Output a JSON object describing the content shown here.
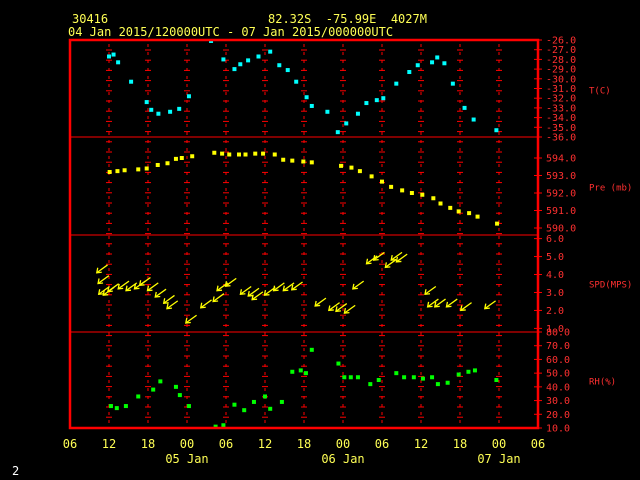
{
  "header": {
    "station": "30416",
    "location": "82.32S  -75.99E  4027M",
    "period": "04 Jan 2015/120000UTC - 07 Jan 2015/000000UTC"
  },
  "footer_id": "2",
  "chart_data": {
    "type": "multi-panel time series",
    "x_ticks": [
      "06",
      "12",
      "18",
      "00",
      "06",
      "12",
      "18",
      "00",
      "06",
      "12",
      "18",
      "00",
      "06"
    ],
    "x_day_labels": [
      {
        "label": "05 Jan",
        "at_hour": 24
      },
      {
        "label": "06 Jan",
        "at_hour": 48
      },
      {
        "label": "07 Jan",
        "at_hour": 72
      }
    ],
    "x_range_hours": [
      6,
      78
    ],
    "colors": {
      "frame": "#ff0000",
      "axis_text": "#ff3030",
      "header": "#ffff55",
      "temp": "#00ffff",
      "pres": "#ffff00",
      "wind": "#ffff00",
      "rh": "#00ff00"
    },
    "panels": [
      {
        "name": "temp",
        "label": "T(C)",
        "ylim": [
          -36,
          -26
        ],
        "ticks": [
          "-26.0",
          "-27.0",
          "-28.0",
          "-29.0",
          "-30.0",
          "-31.0",
          "-32.0",
          "-33.0",
          "-34.0",
          "-35.0",
          "-36.0"
        ],
        "points": [
          [
            12,
            -27.7
          ],
          [
            12.7,
            -27.5
          ],
          [
            13.4,
            -28.3
          ],
          [
            15.4,
            -30.3
          ],
          [
            17.8,
            -32.4
          ],
          [
            18.5,
            -33.2
          ],
          [
            19.6,
            -33.6
          ],
          [
            21.4,
            -33.4
          ],
          [
            22.8,
            -33.1
          ],
          [
            24.3,
            -31.8
          ],
          [
            27.7,
            -26.1
          ],
          [
            29.6,
            -28
          ],
          [
            31.3,
            -29
          ],
          [
            32.2,
            -28.5
          ],
          [
            33.4,
            -28.1
          ],
          [
            35,
            -27.7
          ],
          [
            36.8,
            -27.2
          ],
          [
            38.2,
            -28.6
          ],
          [
            39.5,
            -29.1
          ],
          [
            40.8,
            -30.3
          ],
          [
            42.4,
            -31.9
          ],
          [
            43.2,
            -32.8
          ],
          [
            45.6,
            -33.4
          ],
          [
            47.2,
            -35.5
          ],
          [
            48.5,
            -34.6
          ],
          [
            50.3,
            -33.6
          ],
          [
            51.6,
            -32.5
          ],
          [
            53.2,
            -32.2
          ],
          [
            54.2,
            -32
          ],
          [
            56.2,
            -30.5
          ],
          [
            58.2,
            -29.3
          ],
          [
            59.5,
            -28.6
          ],
          [
            61.7,
            -28.3
          ],
          [
            62.5,
            -27.8
          ],
          [
            63.6,
            -28.4
          ],
          [
            64.9,
            -30.5
          ],
          [
            66.7,
            -33
          ],
          [
            68.1,
            -34.2
          ],
          [
            71.6,
            -35.3
          ]
        ]
      },
      {
        "name": "pres",
        "label": "Pre (mb)",
        "ylim": [
          589.6,
          595.2
        ],
        "ticks": [
          "594.0",
          "593.0",
          "592.0",
          "591.0",
          "590.0"
        ],
        "points": [
          [
            12.1,
            593.2
          ],
          [
            13.3,
            593.25
          ],
          [
            14.4,
            593.3
          ],
          [
            16.5,
            593.35
          ],
          [
            17.8,
            593.4
          ],
          [
            19.5,
            593.6
          ],
          [
            21,
            593.7
          ],
          [
            22.3,
            593.95
          ],
          [
            23.2,
            594.0
          ],
          [
            24.8,
            594.1
          ],
          [
            28.2,
            594.3
          ],
          [
            29.4,
            594.25
          ],
          [
            30.5,
            594.2
          ],
          [
            32,
            594.2
          ],
          [
            33,
            594.2
          ],
          [
            34.5,
            594.25
          ],
          [
            35.7,
            594.25
          ],
          [
            37.5,
            594.2
          ],
          [
            38.8,
            593.9
          ],
          [
            40.2,
            593.85
          ],
          [
            41.9,
            593.8
          ],
          [
            43.2,
            593.75
          ],
          [
            47.7,
            593.55
          ],
          [
            49.3,
            593.45
          ],
          [
            50.6,
            593.25
          ],
          [
            52.4,
            592.95
          ],
          [
            54,
            592.65
          ],
          [
            55.4,
            592.35
          ],
          [
            57.1,
            592.15
          ],
          [
            58.6,
            592.0
          ],
          [
            60.2,
            591.9
          ],
          [
            61.9,
            591.7
          ],
          [
            63,
            591.4
          ],
          [
            64.5,
            591.15
          ],
          [
            65.8,
            590.95
          ],
          [
            67.4,
            590.85
          ],
          [
            68.7,
            590.65
          ],
          [
            71.7,
            590.25
          ]
        ]
      },
      {
        "name": "wind",
        "label": "SPD(MPS)",
        "ylim": [
          0.8,
          6.2
        ],
        "ticks": [
          "6.0",
          "5.0",
          "4.0",
          "3.0",
          "2.0",
          "1.0"
        ],
        "points": [
          [
            11.5,
            4.2
          ],
          [
            11.7,
            3.6
          ],
          [
            11.8,
            3.0
          ],
          [
            12.5,
            2.95
          ],
          [
            13.2,
            3.15
          ],
          [
            14.8,
            3.3
          ],
          [
            16,
            3.2
          ],
          [
            17.3,
            3.3
          ],
          [
            18.1,
            3.5
          ],
          [
            19.3,
            3.2
          ],
          [
            20.5,
            2.85
          ],
          [
            21.8,
            2.5
          ],
          [
            22.3,
            2.2
          ],
          [
            25.2,
            1.4
          ],
          [
            27.5,
            2.25
          ],
          [
            29.4,
            2.6
          ],
          [
            30,
            3.2
          ],
          [
            31.3,
            3.45
          ],
          [
            33.6,
            3.0
          ],
          [
            34.8,
            2.9
          ],
          [
            35.4,
            2.7
          ],
          [
            37.3,
            2.95
          ],
          [
            38.7,
            3.2
          ],
          [
            40.2,
            3.2
          ],
          [
            41.5,
            3.25
          ],
          [
            45.1,
            2.35
          ],
          [
            47.2,
            2.1
          ],
          [
            48.3,
            2.05
          ],
          [
            49.6,
            1.95
          ],
          [
            50.9,
            3.3
          ],
          [
            53,
            4.7
          ],
          [
            54.1,
            4.9
          ],
          [
            55.9,
            4.5
          ],
          [
            56.8,
            4.9
          ],
          [
            57.6,
            4.8
          ],
          [
            62,
            3.0
          ],
          [
            62.4,
            2.3
          ],
          [
            63.5,
            2.3
          ],
          [
            65.3,
            2.3
          ],
          [
            67.5,
            2.1
          ],
          [
            71.2,
            2.2
          ]
        ]
      },
      {
        "name": "rh",
        "label": "RH(%)",
        "ylim": [
          10,
          80
        ],
        "ticks": [
          "80.0",
          "70.0",
          "60.0",
          "50.0",
          "40.0",
          "30.0",
          "20.0",
          "10.0"
        ],
        "points": [
          [
            12.3,
            26
          ],
          [
            13.2,
            24.5
          ],
          [
            14.6,
            26
          ],
          [
            16.5,
            33
          ],
          [
            18.8,
            38
          ],
          [
            19.9,
            44
          ],
          [
            22.3,
            40
          ],
          [
            22.9,
            34
          ],
          [
            24.3,
            26
          ],
          [
            28.4,
            11
          ],
          [
            29.6,
            12
          ],
          [
            31.3,
            27
          ],
          [
            32.8,
            23
          ],
          [
            34.3,
            29
          ],
          [
            36,
            33
          ],
          [
            36.8,
            24
          ],
          [
            38.6,
            29
          ],
          [
            40.2,
            51
          ],
          [
            41.5,
            52
          ],
          [
            42.3,
            50
          ],
          [
            43.2,
            67
          ],
          [
            47.3,
            57
          ],
          [
            48.2,
            47
          ],
          [
            49.2,
            47
          ],
          [
            50.3,
            47
          ],
          [
            52.2,
            42
          ],
          [
            53.5,
            45
          ],
          [
            56.2,
            50
          ],
          [
            57.4,
            47
          ],
          [
            58.9,
            47
          ],
          [
            60.3,
            46
          ],
          [
            61.7,
            47
          ],
          [
            62.6,
            42
          ],
          [
            64.1,
            43
          ],
          [
            65.8,
            49
          ],
          [
            67.3,
            51
          ],
          [
            68.3,
            52
          ],
          [
            71.6,
            45
          ]
        ]
      }
    ]
  }
}
